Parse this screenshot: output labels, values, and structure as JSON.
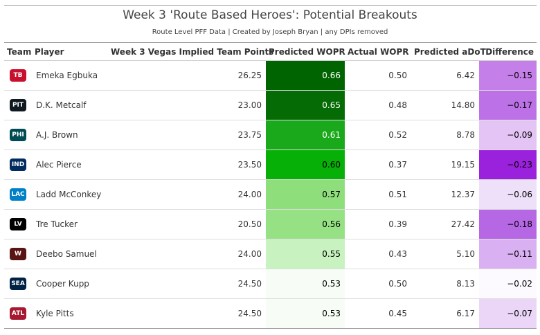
{
  "title": "Week 3 'Route Based Heroes': Potential Breakouts",
  "subtitle": "Route Level PFF Data | Created by Joseph Bryan | any DPIs removed",
  "columns": [
    "Team",
    "Player",
    "Week 3 Vegas Implied Team Points",
    "Predicted WOPR",
    "Actual WOPR",
    "Predicted aDoT",
    "Difference"
  ],
  "chart_data": {
    "type": "table",
    "title": "Week 3 'Route Based Heroes': Potential Breakouts",
    "subtitle": "Route Level PFF Data | Created by Joseph Bryan | any DPIs removed",
    "columns": [
      "Team",
      "Player",
      "Week 3 Vegas Implied Team Points",
      "Predicted WOPR",
      "Actual WOPR",
      "Predicted aDoT",
      "Difference"
    ],
    "rows": [
      {
        "team_logo": "buccaneers-logo-icon",
        "player": "Emeka Egbuka",
        "implied_points": "26.25",
        "predicted_wopr": "0.66",
        "actual_wopr": "0.50",
        "predicted_adot": "6.42",
        "difference": "−0.15",
        "wopr_color": "#006400",
        "wopr_text_color": "#ffffff",
        "diff_color": "#c47fe8"
      },
      {
        "team_logo": "steelers-logo-icon",
        "player": "D.K. Metcalf",
        "implied_points": "23.00",
        "predicted_wopr": "0.65",
        "actual_wopr": "0.48",
        "predicted_adot": "14.80",
        "difference": "−0.17",
        "wopr_color": "#056b05",
        "wopr_text_color": "#ffffff",
        "diff_color": "#bc72e6"
      },
      {
        "team_logo": "eagles-logo-icon",
        "player": "A.J. Brown",
        "implied_points": "23.75",
        "predicted_wopr": "0.61",
        "actual_wopr": "0.52",
        "predicted_adot": "8.78",
        "difference": "−0.09",
        "wopr_color": "#1aa91a",
        "wopr_text_color": "#ffffff",
        "diff_color": "#e3c4f5"
      },
      {
        "team_logo": "colts-logo-icon",
        "player": "Alec Pierce",
        "implied_points": "23.50",
        "predicted_wopr": "0.60",
        "actual_wopr": "0.37",
        "predicted_adot": "19.15",
        "difference": "−0.23",
        "wopr_color": "#06b006",
        "wopr_text_color": "#000000",
        "diff_color": "#9a22dc"
      },
      {
        "team_logo": "chargers-logo-icon",
        "player": "Ladd McConkey",
        "implied_points": "24.00",
        "predicted_wopr": "0.57",
        "actual_wopr": "0.51",
        "predicted_adot": "12.37",
        "difference": "−0.06",
        "wopr_color": "#8fde7c",
        "wopr_text_color": "#000000",
        "diff_color": "#efe0f9"
      },
      {
        "team_logo": "raiders-logo-icon",
        "player": "Tre Tucker",
        "implied_points": "20.50",
        "predicted_wopr": "0.56",
        "actual_wopr": "0.39",
        "predicted_adot": "27.42",
        "difference": "−0.18",
        "wopr_color": "#96e184",
        "wopr_text_color": "#000000",
        "diff_color": "#b667e4"
      },
      {
        "team_logo": "commanders-logo-icon",
        "player": "Deebo Samuel",
        "implied_points": "24.00",
        "predicted_wopr": "0.55",
        "actual_wopr": "0.43",
        "predicted_adot": "5.10",
        "difference": "−0.11",
        "wopr_color": "#c8f2bf",
        "wopr_text_color": "#000000",
        "diff_color": "#d9b0f2"
      },
      {
        "team_logo": "seahawks-logo-icon",
        "player": "Cooper Kupp",
        "implied_points": "24.50",
        "predicted_wopr": "0.53",
        "actual_wopr": "0.50",
        "predicted_adot": "8.13",
        "difference": "−0.02",
        "wopr_color": "#f8fcf7",
        "wopr_text_color": "#000000",
        "diff_color": "#fdfaff"
      },
      {
        "team_logo": "falcons-logo-icon",
        "player": "Kyle Pitts",
        "implied_points": "24.50",
        "predicted_wopr": "0.53",
        "actual_wopr": "0.45",
        "predicted_adot": "6.17",
        "difference": "−0.07",
        "wopr_color": "#f8fcf7",
        "wopr_text_color": "#000000",
        "diff_color": "#ebd6f8"
      }
    ]
  },
  "colors": {
    "logo_bg": {
      "buccaneers-logo-icon": "#c8102e",
      "steelers-logo-icon": "#101820",
      "eagles-logo-icon": "#004c54",
      "colts-logo-icon": "#002c5f",
      "chargers-logo-icon": "#0080c6",
      "raiders-logo-icon": "#000000",
      "commanders-logo-icon": "#5a1414",
      "seahawks-logo-icon": "#002244",
      "falcons-logo-icon": "#a71930"
    }
  }
}
